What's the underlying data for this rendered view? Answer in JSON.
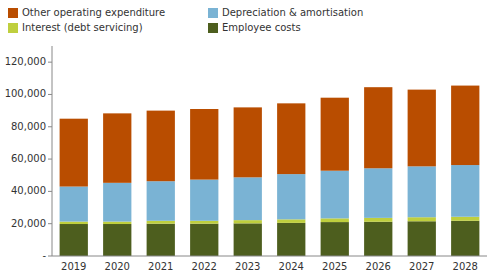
{
  "chart_data": {
    "type": "bar",
    "stacked": true,
    "categories": [
      "2019",
      "2020",
      "2021",
      "2022",
      "2023",
      "2024",
      "2025",
      "2026",
      "2027",
      "2028"
    ],
    "series": [
      {
        "name": "Employee costs",
        "color": "#4d5e1e",
        "values": [
          19800,
          19800,
          20000,
          20000,
          20200,
          20500,
          21000,
          21200,
          21500,
          21800
        ]
      },
      {
        "name": "Interest (debt servicing)",
        "color": "#bfcf3e",
        "values": [
          1500,
          1500,
          1800,
          1800,
          2000,
          2200,
          2300,
          2400,
          2500,
          2500
        ]
      },
      {
        "name": "Depreciation & amortisation",
        "color": "#7ab3d4",
        "values": [
          21700,
          24000,
          24500,
          25500,
          26500,
          28000,
          29500,
          30700,
          31500,
          32000
        ]
      },
      {
        "name": "Other operating expenditure",
        "color": "#b94d00",
        "values": [
          42000,
          43000,
          43700,
          43700,
          43300,
          43800,
          45200,
          50200,
          47500,
          49200
        ]
      }
    ],
    "ylim": [
      0,
      130000
    ],
    "yticks": [
      {
        "value": 0,
        "label": "-"
      },
      {
        "value": 20000,
        "label": "20,000"
      },
      {
        "value": 40000,
        "label": "40,000"
      },
      {
        "value": 60000,
        "label": "60,000"
      },
      {
        "value": 80000,
        "label": "80,000"
      },
      {
        "value": 100000,
        "label": "100,000"
      },
      {
        "value": 120000,
        "label": "120,000"
      }
    ],
    "grid": false,
    "legend": "upper left"
  }
}
